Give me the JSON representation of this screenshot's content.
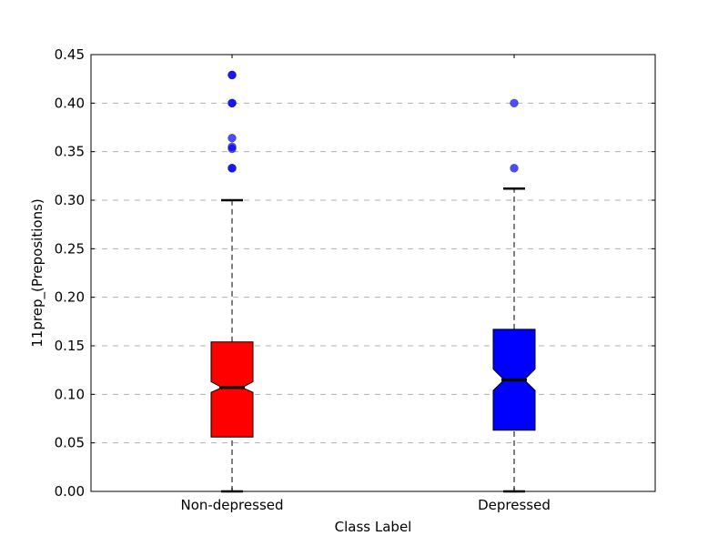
{
  "chart_data": {
    "type": "boxplot",
    "xlabel": "Class Label",
    "ylabel": "11prep_(Prepositions)",
    "ylim": [
      0,
      0.45
    ],
    "yticks": [
      0.0,
      0.05,
      0.1,
      0.15,
      0.2,
      0.25,
      0.3,
      0.35,
      0.4,
      0.45
    ],
    "ytick_labels": [
      "0.00",
      "0.05",
      "0.10",
      "0.15",
      "0.20",
      "0.25",
      "0.30",
      "0.35",
      "0.40",
      "0.45"
    ],
    "grid": "horizontal dashed",
    "notched": true,
    "categories": [
      "Non-depressed",
      "Depressed"
    ],
    "series": [
      {
        "category": "Non-depressed",
        "color": "#ff0000",
        "whisker_low": 0.0,
        "q1": 0.056,
        "notch_low": 0.102,
        "median": 0.107,
        "notch_high": 0.113,
        "q3": 0.154,
        "whisker_high": 0.3,
        "outliers": [
          0.333,
          0.333,
          0.353,
          0.355,
          0.364,
          0.4,
          0.4,
          0.429,
          0.429
        ]
      },
      {
        "category": "Depressed",
        "color": "#0000ff",
        "whisker_low": 0.0,
        "q1": 0.063,
        "notch_low": 0.104,
        "median": 0.115,
        "notch_high": 0.126,
        "q3": 0.167,
        "whisker_high": 0.312,
        "outliers": [
          0.333,
          0.4
        ]
      }
    ],
    "outlier_color": "#0000ff"
  }
}
